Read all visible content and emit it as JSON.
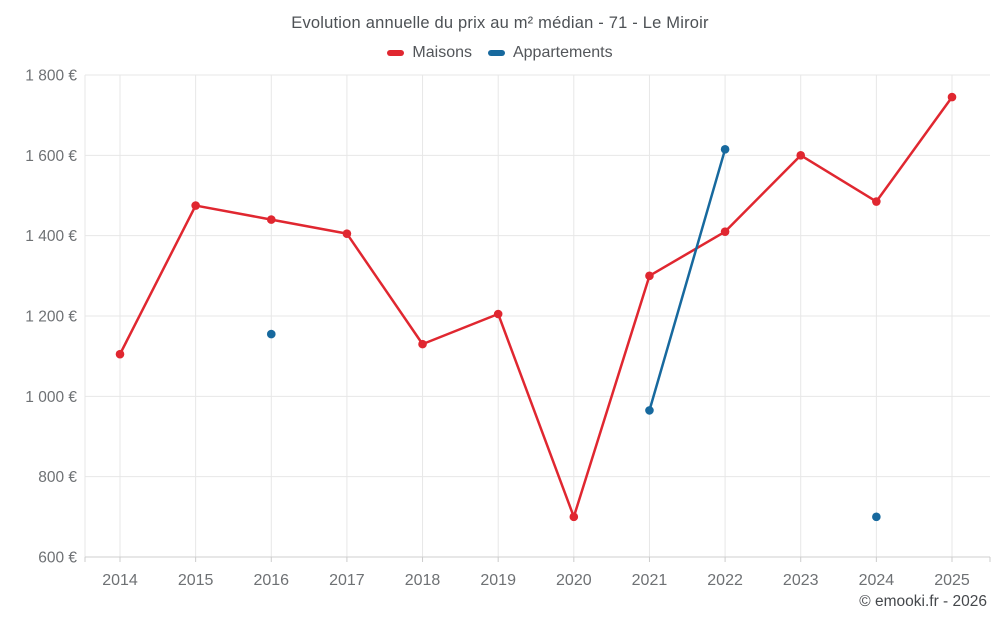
{
  "header": {
    "title": "Evolution annuelle du prix au m² médian - 71 - Le Miroir"
  },
  "legend": {
    "items": [
      {
        "label": "Maisons",
        "color": "#e02730"
      },
      {
        "label": "Appartements",
        "color": "#17699e"
      }
    ]
  },
  "footer": {
    "credit": "© emooki.fr - 2026"
  },
  "colors": {
    "grid": "#e7e7e7",
    "axis_line": "#cfcfcf",
    "tick": "#cccccc",
    "axis_label": "#6e7174"
  },
  "chart_data": {
    "type": "line",
    "title": "Evolution annuelle du prix au m² médian - 71 - Le Miroir",
    "categories": [
      "2014",
      "2015",
      "2016",
      "2017",
      "2018",
      "2019",
      "2020",
      "2021",
      "2022",
      "2023",
      "2024",
      "2025"
    ],
    "series": [
      {
        "name": "Maisons",
        "color": "#e02730",
        "values": [
          1105,
          1475,
          1440,
          1405,
          1130,
          1205,
          700,
          1300,
          1410,
          1600,
          1485,
          1745
        ]
      },
      {
        "name": "Appartements",
        "color": "#17699e",
        "values": [
          null,
          null,
          1155,
          null,
          null,
          null,
          null,
          965,
          1615,
          null,
          700,
          null
        ]
      }
    ],
    "xlabel": "",
    "ylabel": "",
    "ylim": [
      600,
      1800
    ],
    "y_ticks": [
      {
        "value": 600,
        "label": "600 €"
      },
      {
        "value": 800,
        "label": "800 €"
      },
      {
        "value": 1000,
        "label": "1 000 €"
      },
      {
        "value": 1200,
        "label": "1 200 €"
      },
      {
        "value": 1400,
        "label": "1 400 €"
      },
      {
        "value": 1600,
        "label": "1 600 €"
      },
      {
        "value": 1800,
        "label": "1 800 €"
      }
    ],
    "grid": true,
    "legend_position": "top",
    "marker": "circle"
  }
}
